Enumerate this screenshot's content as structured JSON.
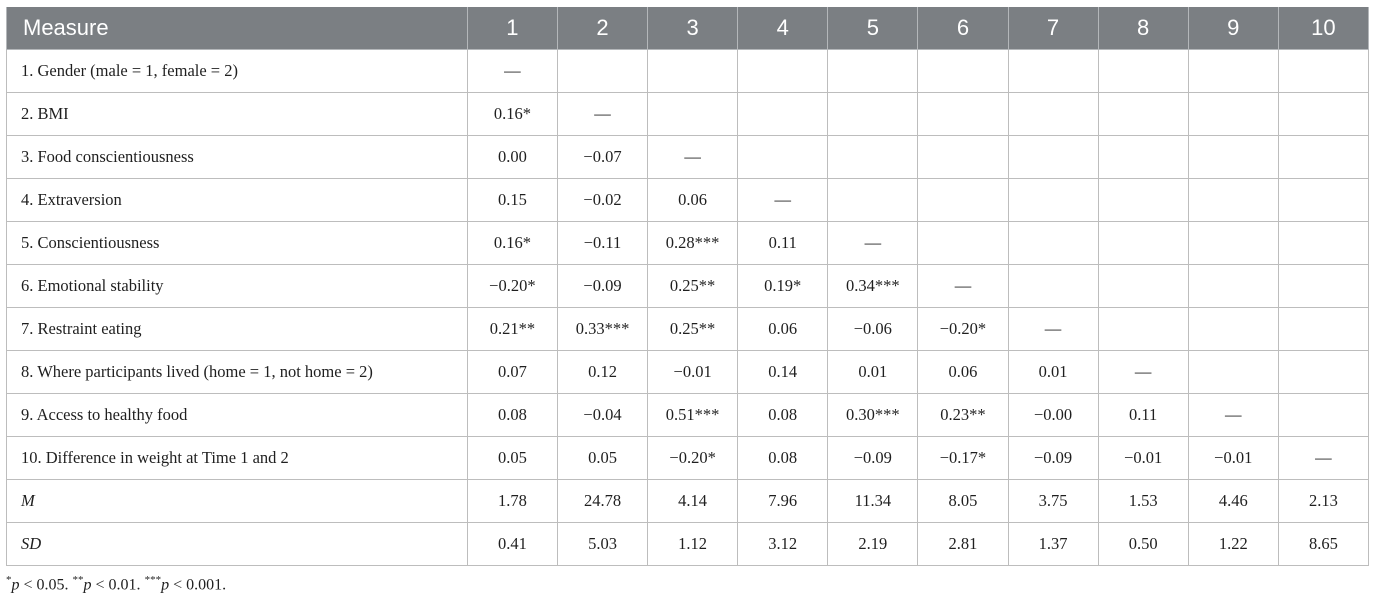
{
  "table": {
    "headers": [
      "Measure",
      "1",
      "2",
      "3",
      "4",
      "5",
      "6",
      "7",
      "8",
      "9",
      "10"
    ],
    "rows": [
      {
        "label": "1. Gender (male = 1, female = 2)",
        "italic": false,
        "cells": [
          "—",
          "",
          "",
          "",
          "",
          "",
          "",
          "",
          "",
          ""
        ]
      },
      {
        "label": "2. BMI",
        "italic": false,
        "cells": [
          "0.16*",
          "—",
          "",
          "",
          "",
          "",
          "",
          "",
          "",
          ""
        ]
      },
      {
        "label": "3. Food conscientiousness",
        "italic": false,
        "cells": [
          "0.00",
          "−0.07",
          "—",
          "",
          "",
          "",
          "",
          "",
          "",
          ""
        ]
      },
      {
        "label": "4. Extraversion",
        "italic": false,
        "cells": [
          "0.15",
          "−0.02",
          "0.06",
          "—",
          "",
          "",
          "",
          "",
          "",
          ""
        ]
      },
      {
        "label": "5. Conscientiousness",
        "italic": false,
        "cells": [
          "0.16*",
          "−0.11",
          "0.28***",
          "0.11",
          "—",
          "",
          "",
          "",
          "",
          ""
        ]
      },
      {
        "label": "6. Emotional stability",
        "italic": false,
        "cells": [
          "−0.20*",
          "−0.09",
          "0.25**",
          "0.19*",
          "0.34***",
          "—",
          "",
          "",
          "",
          ""
        ]
      },
      {
        "label": "7. Restraint eating",
        "italic": false,
        "cells": [
          "0.21**",
          "0.33***",
          "0.25**",
          "0.06",
          "−0.06",
          "−0.20*",
          "—",
          "",
          "",
          ""
        ]
      },
      {
        "label": "8. Where participants lived (home = 1, not home = 2)",
        "italic": false,
        "cells": [
          "0.07",
          "0.12",
          "−0.01",
          "0.14",
          "0.01",
          "0.06",
          "0.01",
          "—",
          "",
          ""
        ]
      },
      {
        "label": "9. Access to healthy food",
        "italic": false,
        "cells": [
          "0.08",
          "−0.04",
          "0.51***",
          "0.08",
          "0.30***",
          "0.23**",
          "−0.00",
          "0.11",
          "—",
          ""
        ]
      },
      {
        "label": "10. Difference in weight at Time 1 and 2",
        "italic": false,
        "cells": [
          "0.05",
          "0.05",
          "−0.20*",
          "0.08",
          "−0.09",
          "−0.17*",
          "−0.09",
          "−0.01",
          "−0.01",
          "—"
        ]
      },
      {
        "label": "M",
        "italic": true,
        "cells": [
          "1.78",
          "24.78",
          "4.14",
          "7.96",
          "11.34",
          "8.05",
          "3.75",
          "1.53",
          "4.46",
          "2.13"
        ]
      },
      {
        "label": "SD",
        "italic": true,
        "cells": [
          "0.41",
          "5.03",
          "1.12",
          "3.12",
          "2.19",
          "2.81",
          "1.37",
          "0.50",
          "1.22",
          "8.65"
        ]
      }
    ]
  },
  "footnote": {
    "parts": [
      {
        "sup": "*",
        "p": "p",
        "text": " < 0.05. "
      },
      {
        "sup": "**",
        "p": "p",
        "text": " < 0.01. "
      },
      {
        "sup": "***",
        "p": "p",
        "text": " < 0.001."
      }
    ]
  },
  "colors": {
    "header_bg": "#7b7f83",
    "header_text": "#ffffff",
    "border": "#bdbdbd"
  }
}
